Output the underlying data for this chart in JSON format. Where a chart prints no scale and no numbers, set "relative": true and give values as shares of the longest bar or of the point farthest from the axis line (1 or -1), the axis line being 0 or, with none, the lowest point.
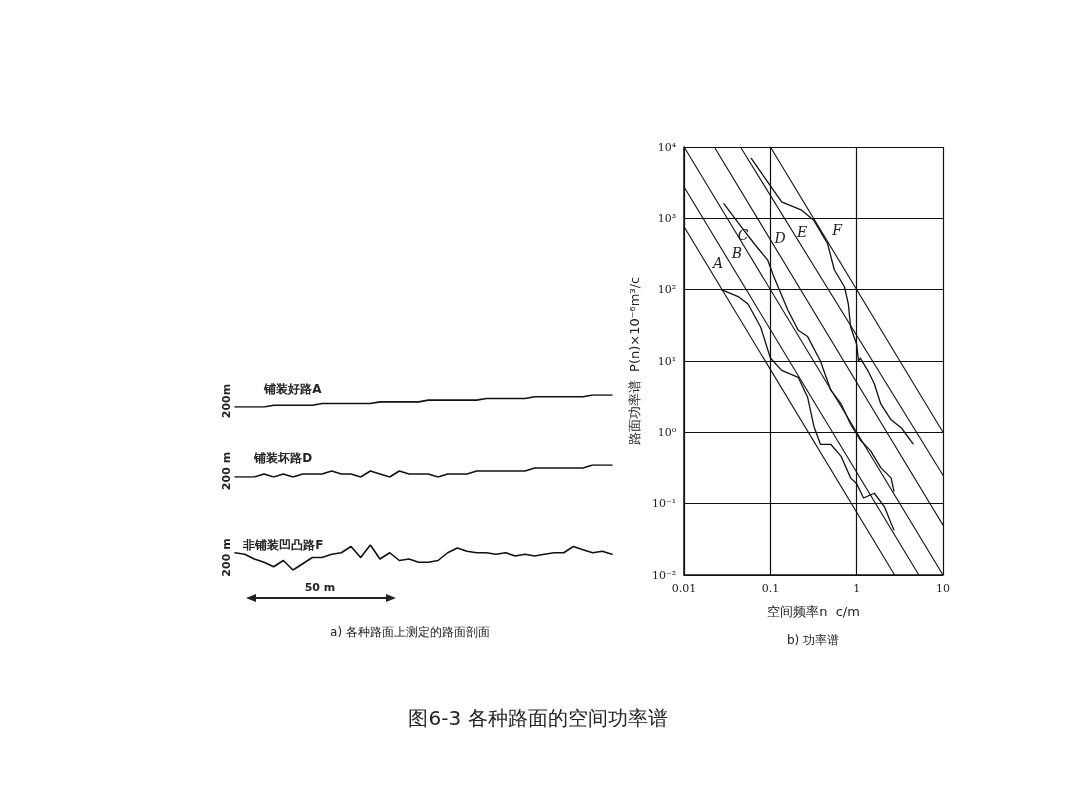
{
  "chart_data": [
    {
      "type": "line",
      "relative": true,
      "marker": "none",
      "categories": [
        null,
        null,
        null,
        null,
        null,
        null,
        null,
        null,
        null,
        null,
        null,
        null,
        null,
        null,
        null,
        null,
        null,
        null,
        null,
        null,
        null,
        null,
        null,
        null,
        null,
        null,
        null,
        null,
        null,
        null,
        null,
        null,
        null,
        null,
        null,
        null,
        null,
        null,
        null,
        null
      ],
      "series": [
        {
          "name": "铺装好路A",
          "color": "#111111",
          "values": [
            0,
            0,
            0,
            0,
            0.14,
            0.14,
            0.14,
            0.14,
            0.14,
            0.29,
            0.29,
            0.29,
            0.29,
            0.29,
            0.29,
            0.43,
            0.43,
            0.43,
            0.43,
            0.43,
            0.57,
            0.57,
            0.57,
            0.57,
            0.57,
            0.57,
            0.71,
            0.71,
            0.71,
            0.71,
            0.71,
            0.86,
            0.86,
            0.86,
            0.86,
            0.86,
            0.86,
            1,
            1,
            1
          ]
        }
      ],
      "annotations": [
        "200m"
      ]
    },
    {
      "type": "line",
      "relative": true,
      "marker": "none",
      "categories": [
        null,
        null,
        null,
        null,
        null,
        null,
        null,
        null,
        null,
        null,
        null,
        null,
        null,
        null,
        null,
        null,
        null,
        null,
        null,
        null,
        null,
        null,
        null,
        null,
        null,
        null,
        null,
        null,
        null,
        null,
        null,
        null,
        null,
        null,
        null,
        null,
        null,
        null,
        null,
        null
      ],
      "series": [
        {
          "name": "铺装坏路D",
          "color": "#111111",
          "values": [
            0,
            0,
            0,
            0.25,
            0,
            0.25,
            0,
            0.25,
            0.25,
            0.25,
            0.5,
            0.25,
            0.25,
            0,
            0.5,
            0.25,
            0,
            0.5,
            0.25,
            0.25,
            0.25,
            0,
            0.25,
            0.25,
            0.25,
            0.5,
            0.5,
            0.5,
            0.5,
            0.5,
            0.5,
            0.75,
            0.75,
            0.75,
            0.75,
            0.75,
            0.75,
            1,
            1,
            1
          ]
        }
      ],
      "annotations": [
        "200 m"
      ]
    },
    {
      "type": "line",
      "relative": true,
      "marker": "none",
      "categories": [
        null,
        null,
        null,
        null,
        null,
        null,
        null,
        null,
        null,
        null,
        null,
        null,
        null,
        null,
        null,
        null,
        null,
        null,
        null,
        null,
        null,
        null,
        null,
        null,
        null,
        null,
        null,
        null,
        null,
        null,
        null,
        null,
        null,
        null,
        null,
        null,
        null,
        null,
        null,
        null
      ],
      "series": [
        {
          "name": "非铺装凹凸路F",
          "color": "#111111",
          "values": [
            0.69,
            0.63,
            0.44,
            0.31,
            0.13,
            0.38,
            0,
            0.25,
            0.5,
            0.5,
            0.63,
            0.69,
            0.94,
            0.5,
            1,
            0.44,
            0.69,
            0.38,
            0.44,
            0.31,
            0.31,
            0.38,
            0.69,
            0.88,
            0.75,
            0.69,
            0.69,
            0.63,
            0.69,
            0.56,
            0.63,
            0.56,
            0.63,
            0.69,
            0.69,
            0.94,
            0.81,
            0.69,
            0.75,
            0.63
          ]
        }
      ],
      "annotations": [
        "200 m",
        "50 m",
        "a) 各种路面上测定的路面剖面"
      ]
    },
    {
      "type": "line",
      "log": "xy",
      "grid": true,
      "marker": "none",
      "xlabel": "空间频率n  c/m",
      "ylabel": "路面功率谱  P(n)×10⁻⁶m³/c",
      "xlim": [
        0.01,
        10
      ],
      "ylim": [
        0.01,
        10000
      ],
      "xticks": [
        0.01,
        0.1,
        1,
        10
      ],
      "yticks": [
        {
          "value": 0.01,
          "label": "10⁻²"
        },
        {
          "value": 0.1,
          "label": "10⁻¹"
        },
        {
          "value": 1,
          "label": "10⁰"
        },
        {
          "value": 10,
          "label": "10¹"
        },
        {
          "value": 100,
          "label": "10²"
        },
        {
          "value": 1000,
          "label": "10³"
        },
        {
          "value": 10000,
          "label": "10⁴"
        }
      ],
      "series": [
        {
          "color": "#111111",
          "x": [
            0.01,
            2.75
          ],
          "values": [
            760,
            0.01
          ]
        },
        {
          "color": "#111111",
          "x": [
            0.01,
            5.25
          ],
          "values": [
            2750,
            0.01
          ]
        },
        {
          "color": "#111111",
          "x": [
            0.01,
            10
          ],
          "values": [
            10000,
            0.01
          ]
        },
        {
          "color": "#111111",
          "x": [
            0.0224,
            10
          ],
          "values": [
            10000,
            0.05
          ]
        },
        {
          "color": "#111111",
          "x": [
            0.045,
            10
          ],
          "values": [
            10000,
            0.25
          ]
        },
        {
          "color": "#111111",
          "x": [
            0.1,
            10
          ],
          "values": [
            10000,
            1
          ]
        },
        {
          "color": "#111111",
          "x": [
            0.06,
            0.135,
            0.23,
            0.32,
            0.46,
            0.55,
            0.72,
            0.8,
            0.85,
            1,
            1.05,
            1.1,
            1.34,
            1.6,
            1.9,
            2.5,
            3.3,
            4.5
          ],
          "values": [
            6900,
            1700,
            1300,
            930,
            440,
            190,
            110,
            63,
            30,
            17,
            10,
            11,
            7.4,
            4.8,
            2.5,
            1.5,
            1.15,
            0.69
          ]
        },
        {
          "color": "#111111",
          "x": [
            0.029,
            0.046,
            0.065,
            0.093,
            0.11,
            0.16,
            0.21,
            0.27,
            0.38,
            0.5,
            0.66,
            0.85,
            1.1,
            1.45,
            1.9,
            2.5,
            2.7
          ],
          "values": [
            1600,
            760,
            440,
            260,
            150,
            51,
            27,
            22,
            10,
            3.9,
            2.5,
            1.3,
            0.78,
            0.55,
            0.32,
            0.23,
            0.15
          ]
        },
        {
          "color": "#111111",
          "x": [
            0.027,
            0.043,
            0.055,
            0.077,
            0.1,
            0.135,
            0.21,
            0.27,
            0.32,
            0.38,
            0.5,
            0.66,
            0.85,
            1,
            1.2,
            1.6,
            2.1,
            2.5,
            2.7
          ],
          "values": [
            100,
            79,
            63,
            30,
            11,
            7.4,
            5.9,
            3.1,
            1.2,
            0.68,
            0.68,
            0.46,
            0.23,
            0.19,
            0.12,
            0.14,
            0.09,
            0.053,
            0.043
          ]
        }
      ],
      "annotations": [
        "A",
        "B",
        "C",
        "D",
        "E",
        "F",
        "b) 功率谱",
        "图6-3  各种路面的空间功率谱"
      ]
    }
  ]
}
